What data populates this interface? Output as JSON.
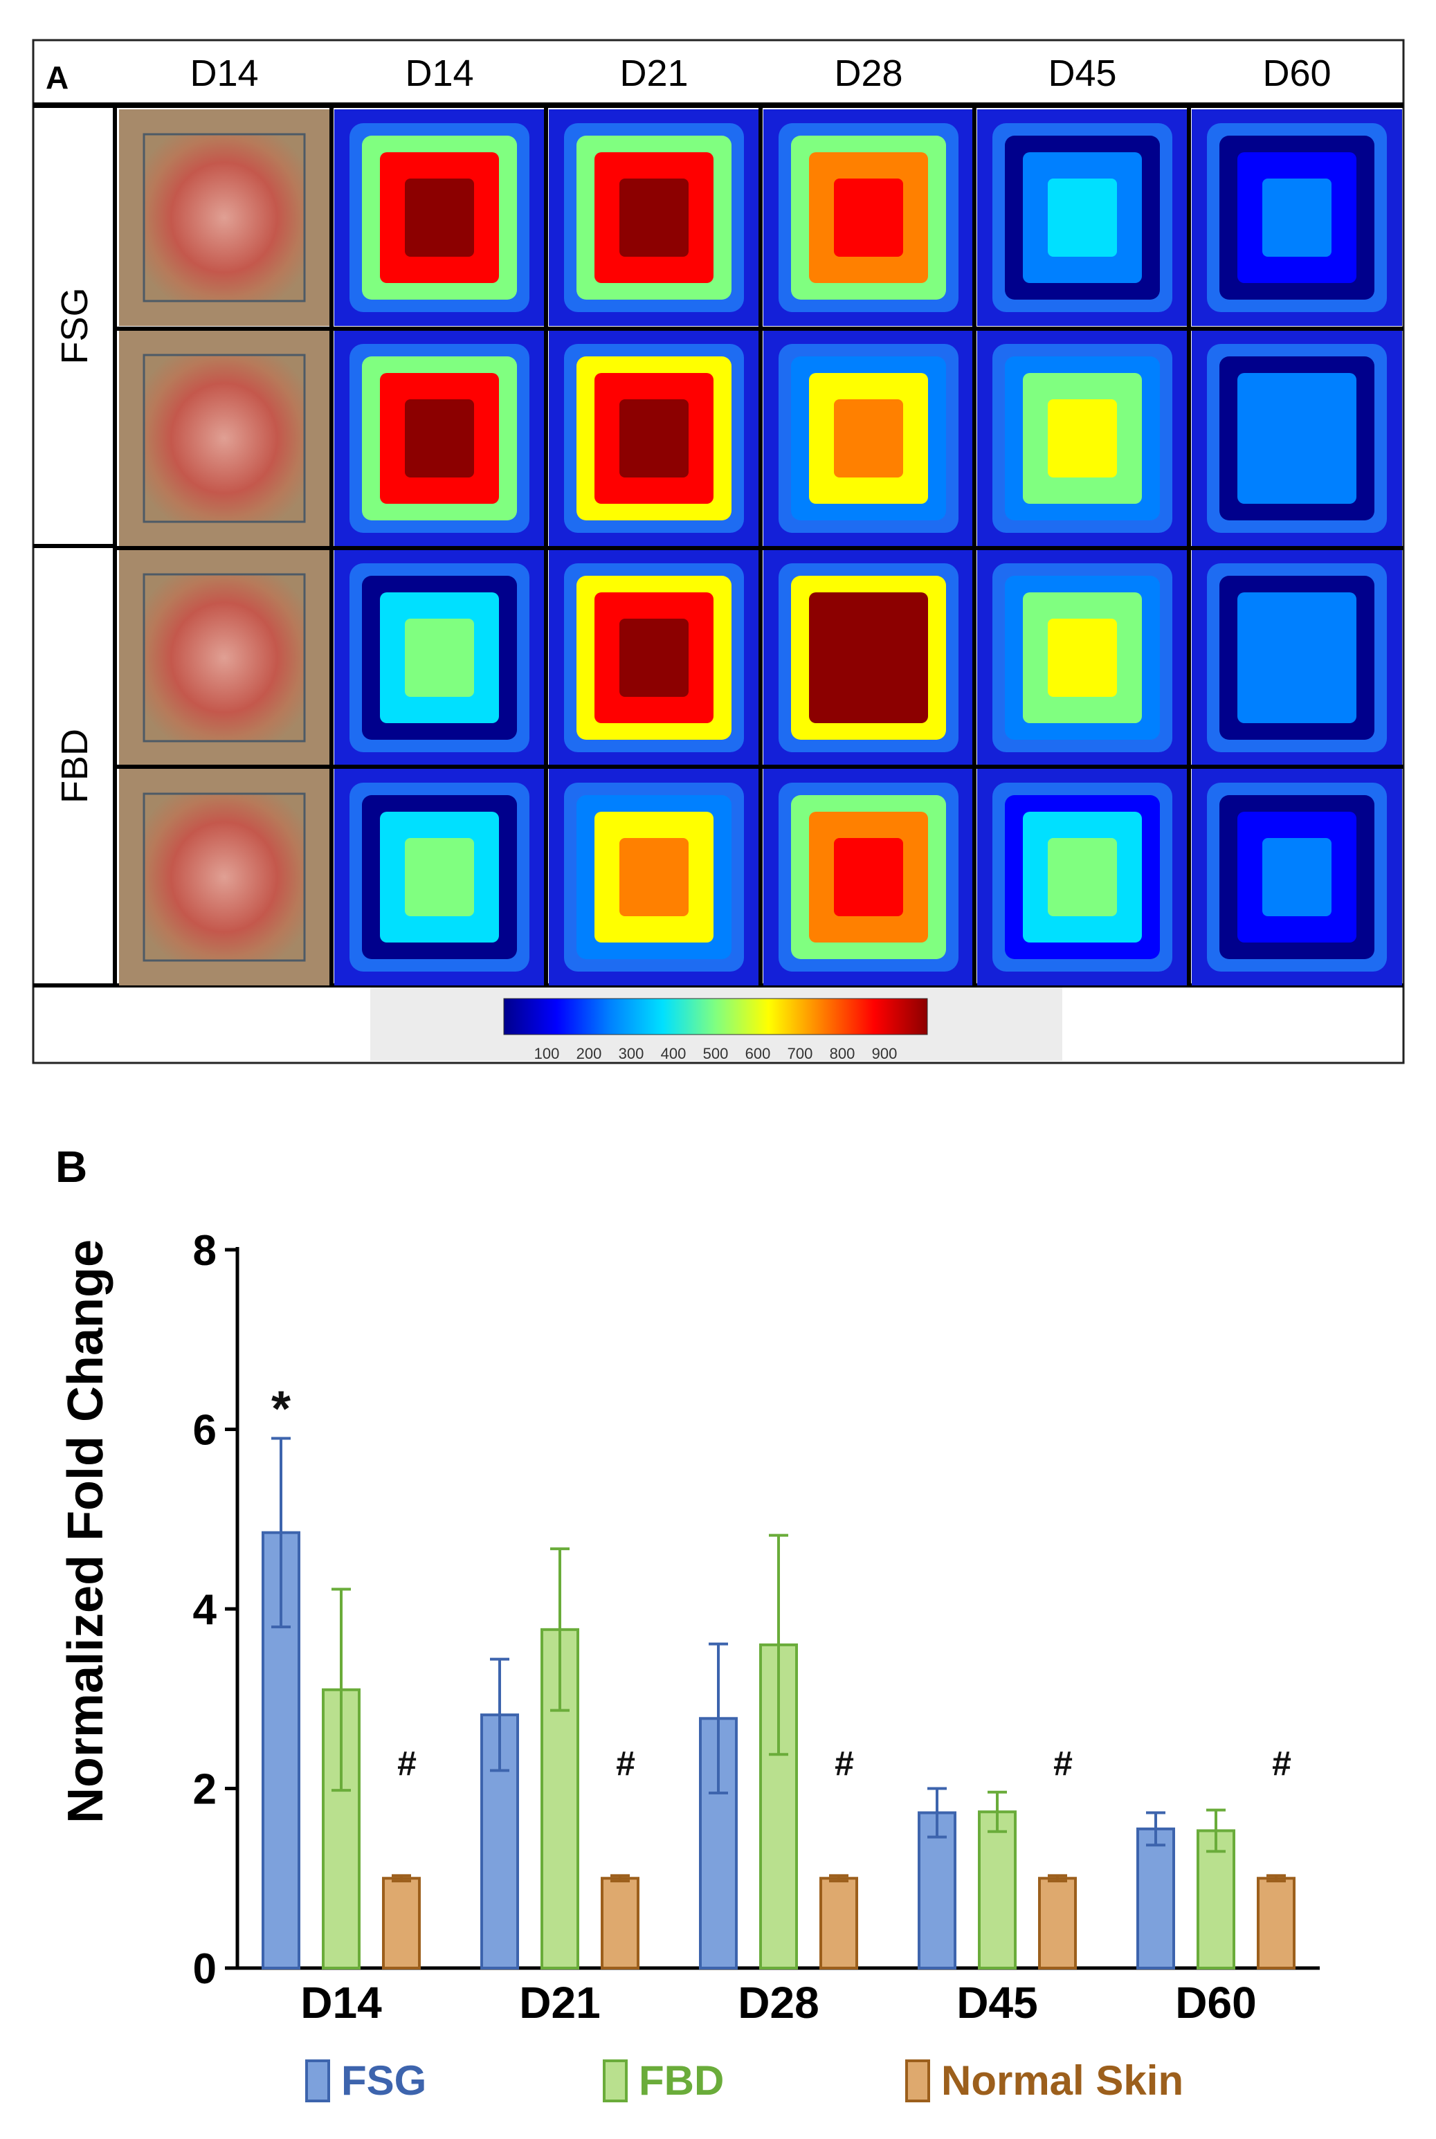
{
  "panel_a": {
    "label": "A",
    "columns": [
      "D14",
      "D14",
      "D21",
      "D28",
      "D45",
      "D60"
    ],
    "groups": [
      "FSG",
      "FBD"
    ],
    "colorbar": {
      "ticks": [
        "100",
        "200",
        "300",
        "400",
        "500",
        "600",
        "700",
        "800",
        "900"
      ],
      "colors": [
        "#00008c",
        "#0000ff",
        "#0080ff",
        "#00e0ff",
        "#80ff80",
        "#ffff00",
        "#ff8000",
        "#ff0000",
        "#8c0000"
      ]
    },
    "images": [
      [
        {
          "kind": "photo",
          "level": 0.6
        },
        {
          "kind": "heat",
          "level": 0.85
        },
        {
          "kind": "heat",
          "level": 0.85
        },
        {
          "kind": "heat",
          "level": 0.75
        },
        {
          "kind": "heat",
          "level": 0.3
        },
        {
          "kind": "heat",
          "level": 0.1
        }
      ],
      [
        {
          "kind": "photo",
          "level": 0.6
        },
        {
          "kind": "heat",
          "level": 0.85
        },
        {
          "kind": "heat",
          "level": 0.9
        },
        {
          "kind": "heat",
          "level": 0.6
        },
        {
          "kind": "heat",
          "level": 0.55
        },
        {
          "kind": "heat",
          "level": 0.2
        }
      ],
      [
        {
          "kind": "photo",
          "level": 0.5
        },
        {
          "kind": "heat",
          "level": 0.35
        },
        {
          "kind": "heat",
          "level": 0.9
        },
        {
          "kind": "heat",
          "level": 0.95
        },
        {
          "kind": "heat",
          "level": 0.55
        },
        {
          "kind": "heat",
          "level": 0.2
        }
      ],
      [
        {
          "kind": "photo",
          "level": 0.45
        },
        {
          "kind": "heat",
          "level": 0.35
        },
        {
          "kind": "heat",
          "level": 0.6
        },
        {
          "kind": "heat",
          "level": 0.8
        },
        {
          "kind": "heat",
          "level": 0.4
        },
        {
          "kind": "heat",
          "level": 0.12
        }
      ]
    ]
  },
  "chart_data": {
    "type": "bar",
    "panel_label": "B",
    "title": "",
    "xlabel": "",
    "ylabel": "Normalized Fold Change",
    "ylim": [
      0,
      8
    ],
    "yticks": [
      0,
      2,
      4,
      6,
      8
    ],
    "categories": [
      "D14",
      "D21",
      "D28",
      "D45",
      "D60"
    ],
    "series": [
      {
        "name": "FSG",
        "color": "#3d64ad",
        "fill": "#7da1dc",
        "values": [
          4.85,
          2.82,
          2.78,
          1.73,
          1.55
        ],
        "errors": [
          1.05,
          0.62,
          0.83,
          0.27,
          0.18
        ]
      },
      {
        "name": "FBD",
        "color": "#6aac3a",
        "fill": "#b9e08e",
        "values": [
          3.1,
          3.77,
          3.6,
          1.74,
          1.53
        ],
        "errors": [
          1.12,
          0.9,
          1.22,
          0.22,
          0.23
        ]
      },
      {
        "name": "Normal Skin",
        "color": "#9c5f1c",
        "fill": "#dea96e",
        "values": [
          1.0,
          1.0,
          1.0,
          1.0,
          1.0
        ],
        "errors": [
          0.03,
          0.03,
          0.03,
          0.03,
          0.03
        ]
      }
    ],
    "annotations": [
      {
        "text": "*",
        "category": "D14",
        "series": "FSG"
      },
      {
        "text": "#",
        "category": "D14",
        "series": "Normal Skin"
      },
      {
        "text": "#",
        "category": "D21",
        "series": "Normal Skin"
      },
      {
        "text": "#",
        "category": "D28",
        "series": "Normal Skin"
      },
      {
        "text": "#",
        "category": "D45",
        "series": "Normal Skin"
      },
      {
        "text": "#",
        "category": "D60",
        "series": "Normal Skin"
      }
    ],
    "legend": {
      "position": "bottom"
    }
  }
}
